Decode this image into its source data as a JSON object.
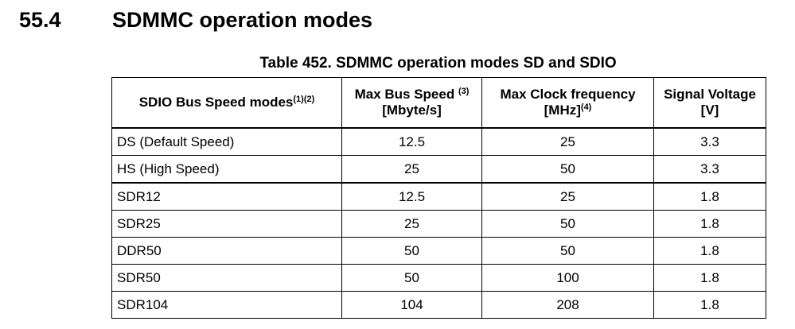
{
  "section": {
    "number": "55.4",
    "title": "SDMMC operation modes"
  },
  "table": {
    "caption": "Table 452. SDMMC operation modes SD and SDIO",
    "headers": [
      {
        "line1": "SDIO Bus Speed modes",
        "sup1": "(1)(2)",
        "line2": "",
        "sup2": ""
      },
      {
        "line1": "Max Bus Speed ",
        "sup1": "(3)",
        "line2": "[Mbyte/s]",
        "sup2": ""
      },
      {
        "line1": "Max Clock frequency",
        "sup1": "",
        "line2": "[MHz]",
        "sup2": "(4)"
      },
      {
        "line1": "Signal Voltage",
        "sup1": "",
        "line2": "[V]",
        "sup2": ""
      }
    ],
    "rows": [
      {
        "mode": "DS (Default Speed)",
        "bus_speed": "12.5",
        "clock": "25",
        "voltage": "3.3"
      },
      {
        "mode": "HS (High Speed)",
        "bus_speed": "25",
        "clock": "50",
        "voltage": "3.3"
      },
      {
        "mode": "SDR12",
        "bus_speed": "12.5",
        "clock": "25",
        "voltage": "1.8"
      },
      {
        "mode": "SDR25",
        "bus_speed": "25",
        "clock": "50",
        "voltage": "1.8"
      },
      {
        "mode": "DDR50",
        "bus_speed": "50",
        "clock": "50",
        "voltage": "1.8"
      },
      {
        "mode": "SDR50",
        "bus_speed": "50",
        "clock": "100",
        "voltage": "1.8"
      },
      {
        "mode": "SDR104",
        "bus_speed": "104",
        "clock": "208",
        "voltage": "1.8"
      }
    ]
  }
}
